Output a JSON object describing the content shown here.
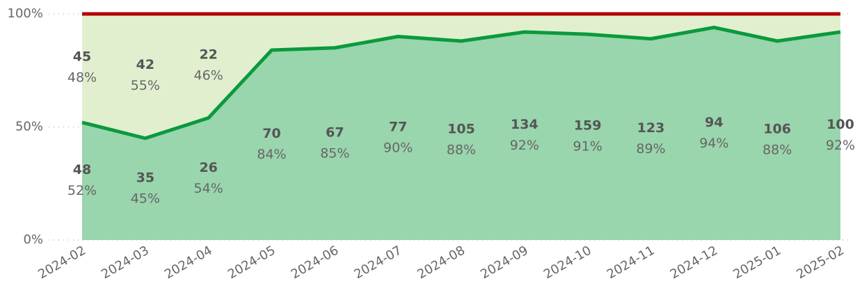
{
  "chart_data": {
    "type": "stacked_area_100",
    "categories": [
      "2024-02",
      "2024-03",
      "2024-04",
      "2024-05",
      "2024-06",
      "2024-07",
      "2024-08",
      "2024-09",
      "2024-10",
      "2024-11",
      "2024-12",
      "2025-01",
      "2025-02"
    ],
    "series": [
      {
        "color": "#99d5ad",
        "line_color": "#0a9a3c",
        "values": [
          52,
          45,
          54,
          84,
          85,
          90,
          88,
          92,
          91,
          89,
          94,
          88,
          92
        ],
        "value_labels": [
          "52%",
          "45%",
          "54%",
          "84%",
          "85%",
          "90%",
          "88%",
          "92%",
          "91%",
          "89%",
          "94%",
          "88%",
          "92%"
        ],
        "counts": [
          48,
          35,
          26,
          70,
          67,
          77,
          105,
          134,
          159,
          123,
          94,
          106,
          100
        ]
      },
      {
        "color": "#e1efcf",
        "line_color": "#b30000",
        "values": [
          48,
          55,
          46,
          16,
          15,
          10,
          12,
          8,
          9,
          11,
          6,
          12,
          8
        ],
        "value_labels": [
          "48%",
          "55%",
          "46%",
          null,
          null,
          null,
          null,
          null,
          null,
          null,
          null,
          null,
          null
        ],
        "counts": [
          45,
          42,
          22,
          null,
          null,
          null,
          null,
          null,
          null,
          null,
          null,
          null,
          null
        ]
      }
    ],
    "ylim": [
      0,
      100
    ],
    "yticks": [
      {
        "value": 0,
        "label": "0%"
      },
      {
        "value": 50,
        "label": "50%"
      },
      {
        "value": 100,
        "label": "100%"
      }
    ],
    "grid": true
  }
}
